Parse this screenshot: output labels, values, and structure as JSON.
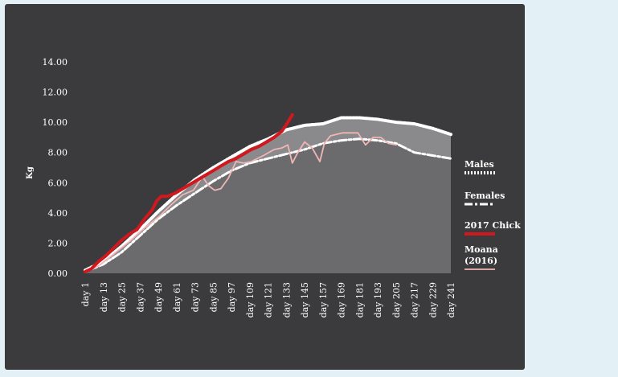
{
  "chart_data": {
    "type": "area",
    "title": "",
    "xlabel": "",
    "ylabel": "Kg",
    "ylim": [
      0,
      14
    ],
    "yticks": [
      "0.00",
      "2.00",
      "4.00",
      "6.00",
      "8.00",
      "10.00",
      "12.00",
      "14.00"
    ],
    "categories": [
      "day 1",
      "day 13",
      "day 25",
      "day 37",
      "day 49",
      "day 61",
      "day 73",
      "day 85",
      "day 97",
      "day 109",
      "day 121",
      "day 133",
      "day 145",
      "day 157",
      "day 169",
      "day 181",
      "day 193",
      "day 205",
      "day 217",
      "day 229",
      "day 241"
    ],
    "legend_position": "right",
    "series": [
      {
        "name": "Males",
        "style": "dotted",
        "color": "#ffffff",
        "x": [
          1,
          13,
          25,
          37,
          49,
          61,
          73,
          85,
          97,
          109,
          121,
          133,
          145,
          157,
          169,
          181,
          193,
          205,
          217,
          229,
          241
        ],
        "y": [
          0.2,
          0.8,
          1.8,
          2.9,
          4.1,
          5.2,
          6.2,
          7.0,
          7.7,
          8.4,
          8.9,
          9.5,
          9.8,
          9.9,
          10.3,
          10.3,
          10.2,
          10.0,
          9.9,
          9.6,
          9.2
        ]
      },
      {
        "name": "Females",
        "style": "dash-dot",
        "color": "#ffffff",
        "x": [
          1,
          13,
          25,
          37,
          49,
          61,
          73,
          85,
          97,
          109,
          121,
          133,
          145,
          157,
          169,
          181,
          193,
          205,
          217,
          229,
          241
        ],
        "y": [
          0.1,
          0.6,
          1.4,
          2.5,
          3.6,
          4.5,
          5.3,
          6.1,
          6.8,
          7.3,
          7.6,
          7.9,
          8.2,
          8.6,
          8.8,
          8.9,
          8.8,
          8.6,
          8.0,
          7.8,
          7.6
        ]
      },
      {
        "name": "2017 Chick",
        "style": "solid-thick",
        "color": "#d0181e",
        "x": [
          1,
          5,
          10,
          15,
          20,
          25,
          30,
          35,
          40,
          45,
          48,
          51,
          55,
          60,
          65,
          70,
          75,
          80,
          85,
          90,
          95,
          100,
          105,
          110,
          115,
          120,
          125,
          130,
          134,
          137
        ],
        "y": [
          0.1,
          0.3,
          0.8,
          1.2,
          1.7,
          2.2,
          2.6,
          2.9,
          3.6,
          4.2,
          4.8,
          5.1,
          5.1,
          5.3,
          5.6,
          5.9,
          6.2,
          6.5,
          6.8,
          7.1,
          7.4,
          7.6,
          7.9,
          8.2,
          8.4,
          8.7,
          9.0,
          9.4,
          10.0,
          10.5
        ]
      },
      {
        "name": "Moana (2016)",
        "style": "solid-thin",
        "color": "#f0b6b6",
        "x": [
          1,
          10,
          20,
          30,
          40,
          50,
          58,
          65,
          72,
          78,
          82,
          86,
          90,
          95,
          100,
          105,
          110,
          118,
          125,
          130,
          134,
          137,
          140,
          145,
          150,
          155,
          158,
          162,
          170,
          180,
          185,
          190,
          195,
          200,
          205
        ],
        "y": [
          0.1,
          0.5,
          1.3,
          2.1,
          3.0,
          3.8,
          4.6,
          5.2,
          5.5,
          6.4,
          5.8,
          5.5,
          5.6,
          6.3,
          7.4,
          7.3,
          7.4,
          7.8,
          8.2,
          8.3,
          8.5,
          7.3,
          7.9,
          8.7,
          8.3,
          7.4,
          8.6,
          9.1,
          9.3,
          9.3,
          8.5,
          9.0,
          9.0,
          8.6,
          8.5
        ]
      }
    ]
  }
}
